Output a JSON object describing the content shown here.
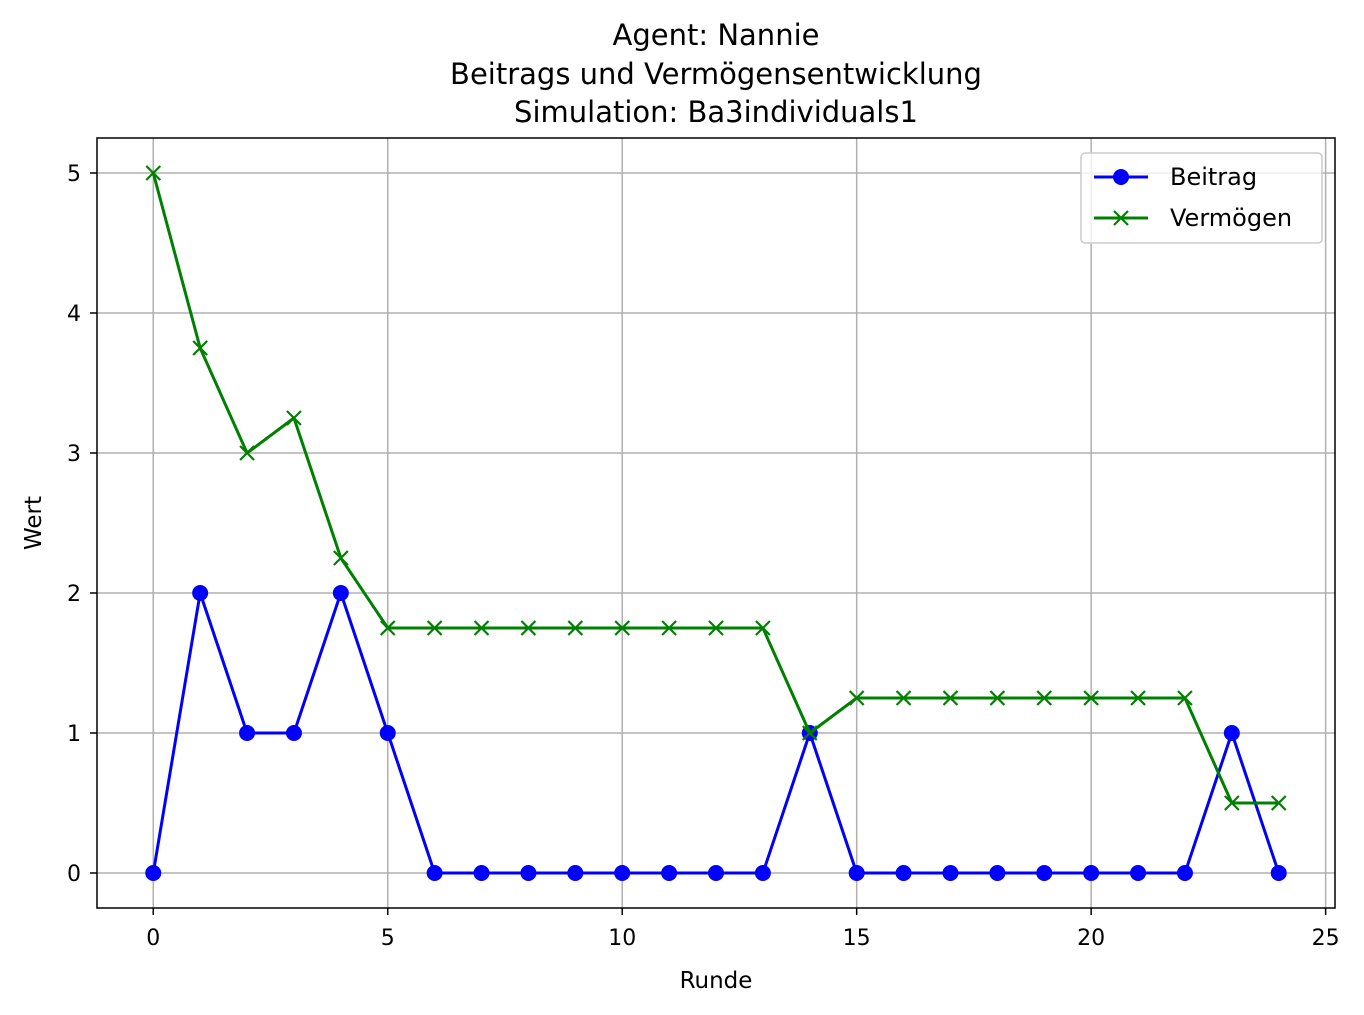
{
  "chart_data": {
    "type": "line",
    "title": [
      "Agent: Nannie",
      "Beitrags und Vermögensentwicklung",
      "Simulation: Ba3individuals1"
    ],
    "xlabel": "Runde",
    "ylabel": "Wert",
    "xlim": [
      -1.2,
      25.2
    ],
    "ylim": [
      -0.25,
      5.25
    ],
    "xticks": [
      0,
      5,
      10,
      15,
      20,
      25
    ],
    "yticks": [
      0,
      1,
      2,
      3,
      4,
      5
    ],
    "grid": true,
    "legend_position": "top-right",
    "x": [
      0,
      1,
      2,
      3,
      4,
      5,
      6,
      7,
      8,
      9,
      10,
      11,
      12,
      13,
      14,
      15,
      16,
      17,
      18,
      19,
      20,
      21,
      22,
      23,
      24
    ],
    "series": [
      {
        "name": "Beitrag",
        "color": "#0000ff",
        "marker": "circle",
        "values": [
          0,
          2,
          1,
          1,
          2,
          1,
          0,
          0,
          0,
          0,
          0,
          0,
          0,
          0,
          1,
          0,
          0,
          0,
          0,
          0,
          0,
          0,
          0,
          1,
          0
        ]
      },
      {
        "name": "Vermögen",
        "color": "#008000",
        "marker": "x",
        "values": [
          5,
          3.75,
          3,
          3.25,
          2.25,
          1.75,
          1.75,
          1.75,
          1.75,
          1.75,
          1.75,
          1.75,
          1.75,
          1.75,
          1,
          1.25,
          1.25,
          1.25,
          1.25,
          1.25,
          1.25,
          1.25,
          1.25,
          0.5,
          0.5
        ]
      }
    ]
  }
}
